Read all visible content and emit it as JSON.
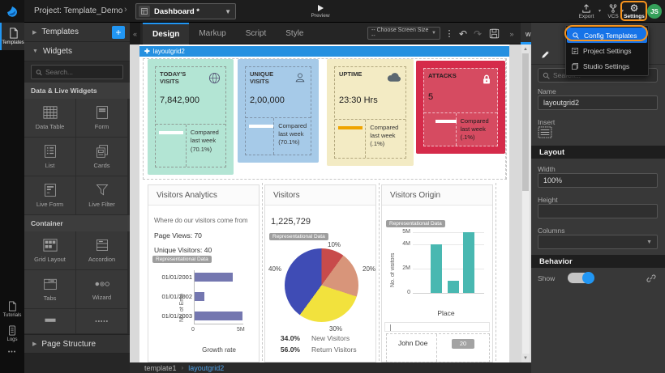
{
  "colors": {
    "accent": "#2196f3",
    "highlight_orange": "#f7941e",
    "stat_mint": "#b3e5d4",
    "stat_blue": "#a6cae8",
    "stat_cream": "#f3ebc4",
    "stat_red": "#d52b4a"
  },
  "top_bar": {
    "project": "Project: Template_Demo",
    "page_dropdown": "Dashboard *",
    "preview": "Preview",
    "export": "Export",
    "vcs": "VCS",
    "settings": "Settings",
    "avatar_initials": "JS"
  },
  "left_rail": {
    "templates": "Templates",
    "tutorials": "Tutorials",
    "logs": "Logs",
    "more": "•••"
  },
  "sidebar": {
    "templates_header": "Templates",
    "add_button": "+",
    "widgets_header": "Widgets",
    "search_placeholder": "Search...",
    "section1_title": "Data & Live Widgets",
    "widgets1": [
      "Data Table",
      "Form",
      "List",
      "Cards",
      "Live Form",
      "Live Filter"
    ],
    "section2_title": "Container",
    "widgets2": [
      "Grid Layout",
      "Accordion",
      "Tabs",
      "Wizard"
    ],
    "page_structure": "Page Structure"
  },
  "toolbar": {
    "tabs": [
      "Design",
      "Markup",
      "Script",
      "Style"
    ],
    "active_tab": "Design",
    "screen_size": "-- Choose Screen Size --"
  },
  "right_panel": {
    "tab": "wm-layout",
    "menu": [
      {
        "label": "Config Templates"
      },
      {
        "label": "Project Settings"
      },
      {
        "label": "Studio Settings"
      }
    ],
    "active_menu_item": "Config Templates",
    "search_placeholder": "Search...",
    "name_label": "Name",
    "name_value": "layoutgrid2",
    "insert_label": "Insert",
    "layout_header": "Layout",
    "width_label": "Width",
    "width_value": "100%",
    "height_label": "Height",
    "height_value": "",
    "columns_label": "Columns",
    "behavior_header": "Behavior",
    "show_label": "Show",
    "show_on": true
  },
  "canvas": {
    "selection_label": "layoutgrid2",
    "badge": "Representational Data",
    "stat_cards": [
      {
        "title": "TODAY'S VISITS",
        "value": "7,842,900",
        "note": "Compared last week (70.1%)",
        "icon": "globe"
      },
      {
        "title": "UNIQUE VISITS",
        "value": "2,00,000",
        "note": "Compared last week (70.1%)",
        "icon": "user"
      },
      {
        "title": "UPTIME",
        "value": "23:30 Hrs",
        "note": "Compared last week (.1%)",
        "icon": "cloud"
      },
      {
        "title": "ATTACKS",
        "value": "5",
        "note": "Compared last week (.1%)",
        "icon": "lock"
      }
    ],
    "analytics": {
      "title": "Visitors Analytics",
      "subtitle": "Where do our visitors come from",
      "page_views": "Page Views: 70",
      "unique_visitors": "Unique Visitors: 40",
      "chart": {
        "type": "bar-horizontal",
        "categories": [
          "01/01/2001",
          "01/01/2002",
          "01/01/2003"
        ],
        "values": [
          4,
          1,
          5
        ],
        "max": 5,
        "unit": "M",
        "xticks": [
          "0",
          "5M"
        ],
        "xlabel": "Growth rate",
        "ylabel": "No. of Emp",
        "bar_color": "#7477b0"
      }
    },
    "visitors": {
      "title": "Visitors",
      "value": "1,225,729",
      "pie": [
        {
          "label": "10%",
          "value": 10,
          "color": "#c84b4b"
        },
        {
          "label": "20%",
          "value": 20,
          "color": "#d8957a"
        },
        {
          "label": "30%",
          "value": 30,
          "color": "#f2e23d"
        },
        {
          "label": "40%",
          "value": 40,
          "color": "#3f4cb5"
        }
      ],
      "legend": [
        {
          "pct": "34.0%",
          "label": "New Visitors"
        },
        {
          "pct": "56.0%",
          "label": "Return Visitors"
        }
      ]
    },
    "origin": {
      "title": "Visitors Origin",
      "chart": {
        "type": "bar",
        "values": [
          4,
          1,
          5
        ],
        "max": 5,
        "unit": "M",
        "yticks": [
          "5M",
          "4M",
          "2M",
          "0"
        ],
        "ylabel": "No. of visitors",
        "xlabel": "Place",
        "bar_color": "#49b8b1"
      },
      "table_row": {
        "name": "John Doe",
        "badge": "20"
      }
    }
  },
  "bottom_bar": {
    "breadcrumb": [
      "template1",
      "layoutgrid2"
    ]
  }
}
